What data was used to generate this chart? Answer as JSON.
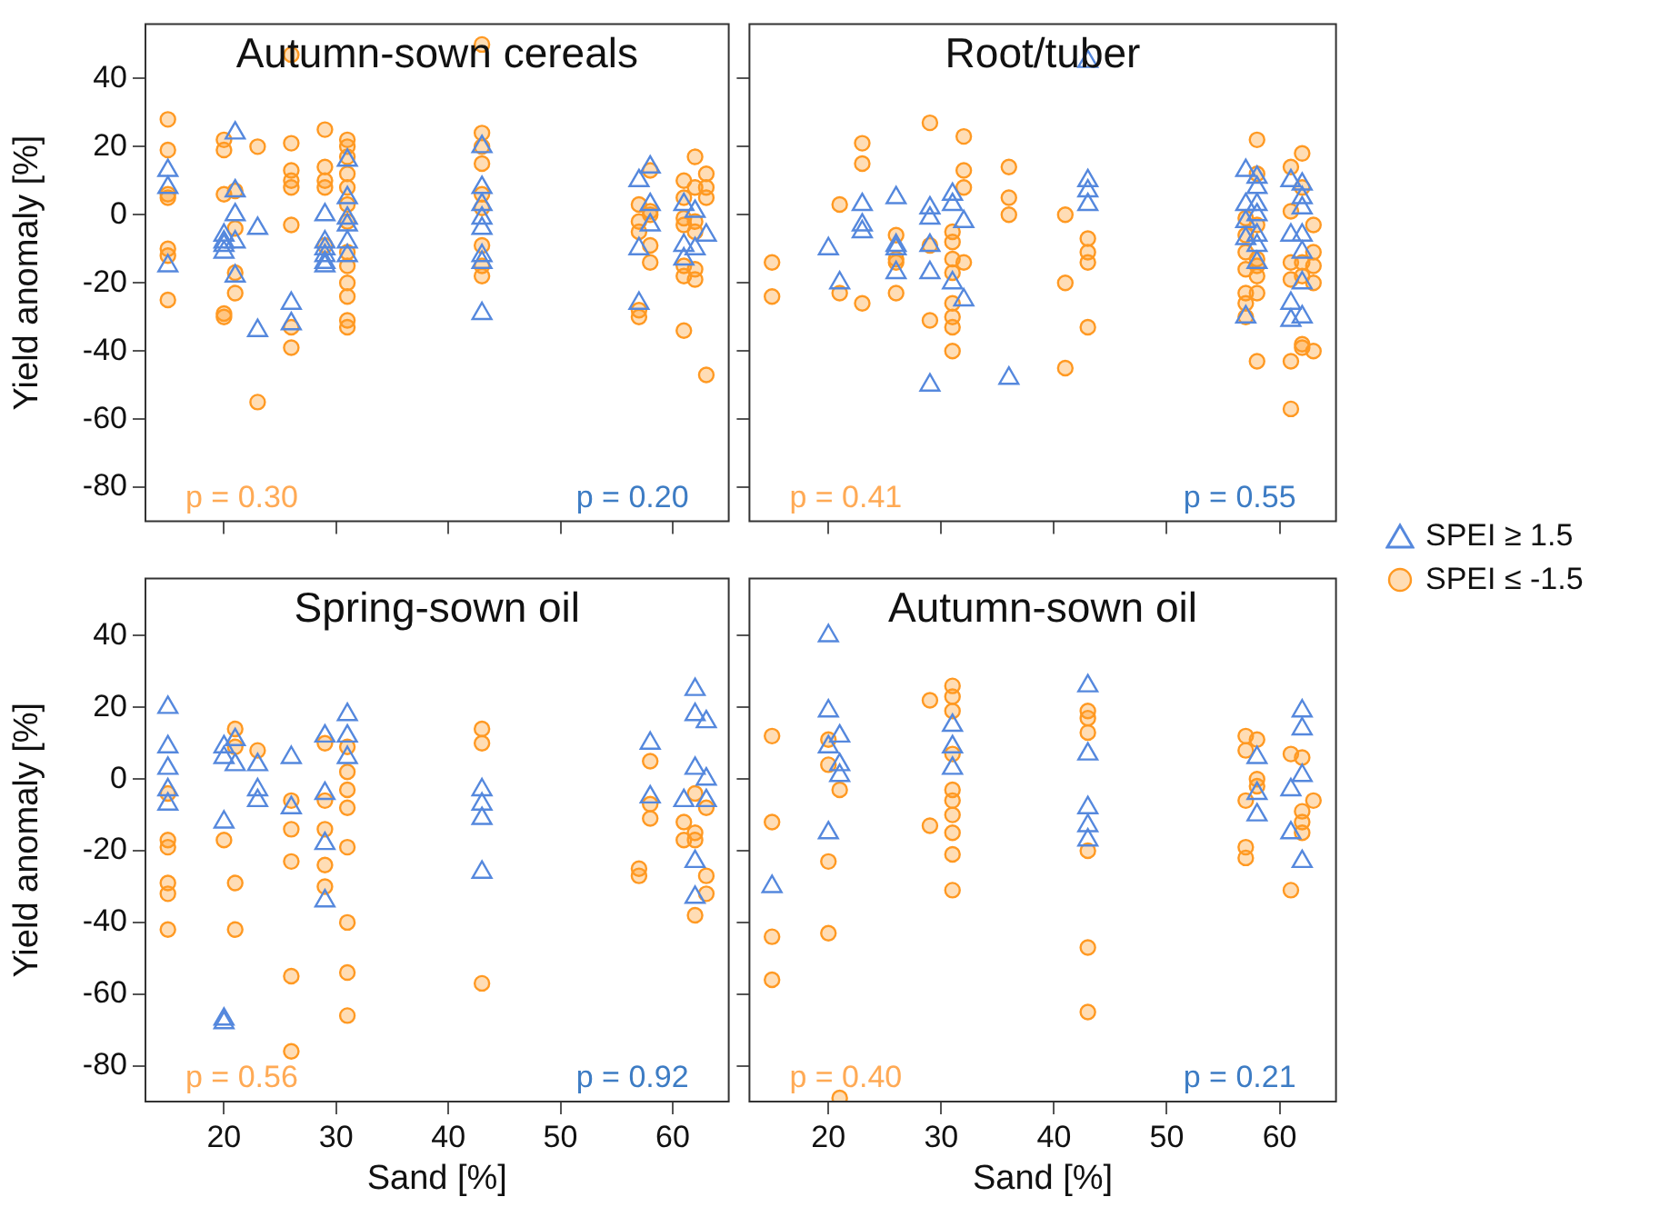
{
  "chart_data": [
    {
      "type": "scatter",
      "title": "Autumn-sown cereals",
      "ylabel": "Yield anomaly [%]",
      "xlim": [
        13,
        65
      ],
      "ylim": [
        -90,
        56
      ],
      "xticks": [
        20,
        30,
        40,
        50,
        60
      ],
      "yticks": [
        -80,
        -60,
        -40,
        -20,
        0,
        20,
        40
      ],
      "tick_labels": "y",
      "legend": "right",
      "annotations": [
        "p = 0.30",
        "p = 0.20"
      ],
      "series": [
        {
          "name": "SPEI ≥ 1.5",
          "color": "#5588dd",
          "marker": "triangle",
          "x": [
            15,
            15,
            15,
            20,
            20,
            20,
            20,
            21,
            21,
            21,
            21,
            21,
            23,
            23,
            26,
            26,
            29,
            29,
            29,
            29,
            29,
            29,
            31,
            31,
            31,
            31,
            31,
            31,
            43,
            43,
            43,
            43,
            43,
            43,
            43,
            43,
            57,
            57,
            57,
            58,
            58,
            58,
            61,
            61,
            61,
            62,
            62,
            63
          ],
          "values": [
            13,
            8,
            -15,
            -6,
            -8,
            -9,
            -11,
            24,
            7,
            0,
            -8,
            -18,
            -4,
            -34,
            -26,
            -32,
            0,
            -8,
            -10,
            -12,
            -14,
            -15,
            16,
            5,
            -1,
            -3,
            -8,
            -12,
            20,
            8,
            3,
            -1,
            -4,
            -12,
            -14,
            -29,
            10,
            -10,
            -26,
            14,
            3,
            -3,
            3,
            -9,
            -13,
            1,
            -10,
            -6
          ]
        },
        {
          "name": "SPEI ≤ -1.5",
          "color": "#ff9922",
          "marker": "circle",
          "x": [
            15,
            15,
            15,
            15,
            15,
            15,
            15,
            20,
            20,
            20,
            20,
            20,
            21,
            21,
            21,
            21,
            23,
            23,
            26,
            26,
            26,
            26,
            26,
            26,
            26,
            26,
            29,
            29,
            29,
            29,
            29,
            31,
            31,
            31,
            31,
            31,
            31,
            31,
            31,
            31,
            31,
            31,
            31,
            31,
            43,
            43,
            43,
            43,
            43,
            43,
            43,
            43,
            43,
            57,
            57,
            57,
            57,
            57,
            58,
            58,
            58,
            58,
            58,
            61,
            61,
            61,
            61,
            61,
            61,
            61,
            62,
            62,
            62,
            62,
            62,
            62,
            63,
            63,
            63,
            63
          ],
          "values": [
            28,
            19,
            6,
            5,
            -10,
            -12,
            -25,
            22,
            19,
            6,
            -29,
            -30,
            7,
            -4,
            -17,
            -23,
            20,
            -55,
            47,
            21,
            13,
            10,
            8,
            -3,
            -33,
            -39,
            25,
            14,
            10,
            8,
            -9,
            22,
            20,
            17,
            12,
            8,
            3,
            -2,
            -11,
            -15,
            -20,
            -24,
            -31,
            -33,
            50,
            24,
            20,
            15,
            6,
            2,
            -9,
            -15,
            -18,
            3,
            -2,
            -5,
            -28,
            -30,
            13,
            1,
            0,
            -9,
            -14,
            10,
            5,
            -1,
            -3,
            -15,
            -18,
            -34,
            17,
            8,
            -2,
            -5,
            -16,
            -19,
            12,
            8,
            5,
            -47
          ]
        }
      ]
    },
    {
      "type": "scatter",
      "title": "Root/tuber",
      "xlim": [
        13,
        65
      ],
      "ylim": [
        -90,
        56
      ],
      "xticks": [
        20,
        30,
        40,
        50,
        60
      ],
      "yticks": [
        -80,
        -60,
        -40,
        -20,
        0,
        20,
        40
      ],
      "tick_labels": false,
      "annotations": [
        "p = 0.41",
        "p = 0.55"
      ],
      "series": [
        {
          "color": "#5588dd",
          "marker": "triangle",
          "x": [
            20,
            21,
            23,
            23,
            23,
            26,
            26,
            26,
            26,
            29,
            29,
            29,
            29,
            29,
            31,
            31,
            31,
            32,
            32,
            36,
            43,
            43,
            43,
            43,
            57,
            57,
            57,
            57,
            57,
            58,
            58,
            58,
            58,
            58,
            58,
            58,
            61,
            61,
            61,
            61,
            62,
            62,
            62,
            62,
            62,
            62,
            62
          ],
          "values": [
            -10,
            -20,
            3,
            -3,
            -5,
            5,
            -9,
            -10,
            -17,
            2,
            -1,
            -9,
            -17,
            -50,
            6,
            3,
            -20,
            -2,
            -25,
            -48,
            45,
            10,
            7,
            3,
            13,
            3,
            -2,
            -7,
            -30,
            11,
            8,
            3,
            0,
            -6,
            -9,
            -14,
            10,
            -6,
            -26,
            -31,
            9,
            5,
            2,
            -6,
            -11,
            -20,
            -30
          ]
        },
        {
          "color": "#ff9922",
          "marker": "circle",
          "x": [
            15,
            15,
            21,
            21,
            23,
            23,
            23,
            26,
            26,
            26,
            26,
            29,
            29,
            29,
            31,
            31,
            31,
            31,
            31,
            31,
            31,
            31,
            32,
            32,
            32,
            32,
            36,
            36,
            36,
            41,
            41,
            41,
            43,
            43,
            43,
            43,
            57,
            57,
            57,
            57,
            57,
            57,
            57,
            58,
            58,
            58,
            58,
            58,
            58,
            58,
            58,
            61,
            61,
            61,
            61,
            61,
            61,
            62,
            62,
            62,
            62,
            62,
            62,
            63,
            63,
            63,
            63,
            63
          ],
          "values": [
            -14,
            -24,
            3,
            -23,
            21,
            15,
            -26,
            -6,
            -13,
            -14,
            -23,
            27,
            -9,
            -31,
            -5,
            -8,
            -13,
            -17,
            -26,
            -30,
            -33,
            -40,
            23,
            13,
            8,
            -14,
            14,
            5,
            0,
            0,
            -20,
            -45,
            -7,
            -11,
            -14,
            -33,
            -1,
            -6,
            -11,
            -16,
            -23,
            -26,
            -30,
            22,
            12,
            -3,
            -13,
            -15,
            -18,
            -23,
            -43,
            14,
            1,
            -14,
            -19,
            -43,
            -57,
            18,
            8,
            -14,
            -18,
            -38,
            -39,
            -3,
            -11,
            -15,
            -20,
            -40
          ]
        }
      ]
    },
    {
      "type": "scatter",
      "title": "Spring-sown oil",
      "xlabel": "Sand [%]",
      "ylabel": "Yield anomaly [%]",
      "xlim": [
        13,
        65
      ],
      "ylim": [
        -90,
        56
      ],
      "xticks": [
        20,
        30,
        40,
        50,
        60
      ],
      "yticks": [
        -80,
        -60,
        -40,
        -20,
        0,
        20,
        40
      ],
      "annotations": [
        "p = 0.56",
        "p = 0.92"
      ],
      "series": [
        {
          "color": "#5588dd",
          "marker": "triangle",
          "x": [
            15,
            15,
            15,
            15,
            15,
            20,
            20,
            20,
            20,
            20,
            21,
            21,
            23,
            23,
            23,
            26,
            26,
            29,
            29,
            29,
            29,
            31,
            31,
            31,
            43,
            43,
            43,
            43,
            58,
            58,
            61,
            62,
            62,
            62,
            62,
            62,
            63,
            63,
            63
          ],
          "values": [
            20,
            9,
            3,
            -3,
            -7,
            9,
            6,
            -12,
            -67,
            -68,
            11,
            4,
            4,
            -3,
            -6,
            6,
            -8,
            12,
            -4,
            -18,
            -34,
            18,
            12,
            6,
            -3,
            -7,
            -11,
            -26,
            10,
            -5,
            -6,
            25,
            18,
            3,
            -23,
            -33,
            16,
            0,
            -6
          ]
        },
        {
          "color": "#ff9922",
          "marker": "circle",
          "x": [
            15,
            15,
            15,
            15,
            15,
            15,
            20,
            21,
            21,
            21,
            21,
            23,
            26,
            26,
            26,
            26,
            26,
            29,
            29,
            29,
            29,
            29,
            31,
            31,
            31,
            31,
            31,
            31,
            31,
            31,
            43,
            43,
            43,
            57,
            57,
            58,
            58,
            58,
            61,
            61,
            62,
            62,
            62,
            62,
            63,
            63,
            63
          ],
          "values": [
            -4,
            -17,
            -19,
            -29,
            -32,
            -42,
            -17,
            14,
            9,
            -29,
            -42,
            8,
            -6,
            -14,
            -23,
            -55,
            -76,
            10,
            -6,
            -14,
            -24,
            -30,
            9,
            2,
            -3,
            -8,
            -19,
            -40,
            -54,
            -66,
            14,
            10,
            -57,
            -25,
            -27,
            5,
            -7,
            -11,
            -12,
            -17,
            -4,
            -15,
            -17,
            -38,
            -8,
            -27,
            -32
          ]
        }
      ]
    },
    {
      "type": "scatter",
      "title": "Autumn-sown oil",
      "xlabel": "Sand [%]",
      "xlim": [
        13,
        65
      ],
      "ylim": [
        -90,
        56
      ],
      "xticks": [
        20,
        30,
        40,
        50,
        60
      ],
      "yticks": [
        -80,
        -60,
        -40,
        -20,
        0,
        20,
        40
      ],
      "tick_labels": "x",
      "annotations": [
        "p = 0.40",
        "p = 0.21"
      ],
      "series": [
        {
          "color": "#5588dd",
          "marker": "triangle",
          "x": [
            15,
            20,
            20,
            20,
            20,
            21,
            21,
            21,
            31,
            31,
            31,
            43,
            43,
            43,
            43,
            43,
            58,
            58,
            58,
            61,
            61,
            62,
            62,
            62,
            62
          ],
          "values": [
            -30,
            40,
            19,
            9,
            -15,
            12,
            4,
            1,
            15,
            9,
            3,
            26,
            7,
            -8,
            -13,
            -17,
            6,
            -4,
            -10,
            -3,
            -15,
            19,
            14,
            1,
            -23
          ]
        },
        {
          "color": "#ff9922",
          "marker": "circle",
          "x": [
            15,
            15,
            15,
            15,
            20,
            20,
            20,
            20,
            21,
            21,
            29,
            29,
            31,
            31,
            31,
            31,
            31,
            31,
            31,
            31,
            31,
            31,
            43,
            43,
            43,
            43,
            43,
            43,
            57,
            57,
            57,
            57,
            57,
            58,
            58,
            58,
            61,
            61,
            62,
            62,
            62,
            62,
            63
          ],
          "values": [
            12,
            -12,
            -44,
            -56,
            11,
            4,
            -23,
            -43,
            -3,
            -89,
            22,
            -13,
            26,
            23,
            19,
            7,
            -3,
            -6,
            -10,
            -15,
            -21,
            -31,
            19,
            17,
            13,
            -20,
            -47,
            -65,
            12,
            8,
            -6,
            -19,
            -22,
            11,
            0,
            -2,
            7,
            -31,
            6,
            -9,
            -12,
            -15,
            -6
          ]
        }
      ]
    }
  ]
}
